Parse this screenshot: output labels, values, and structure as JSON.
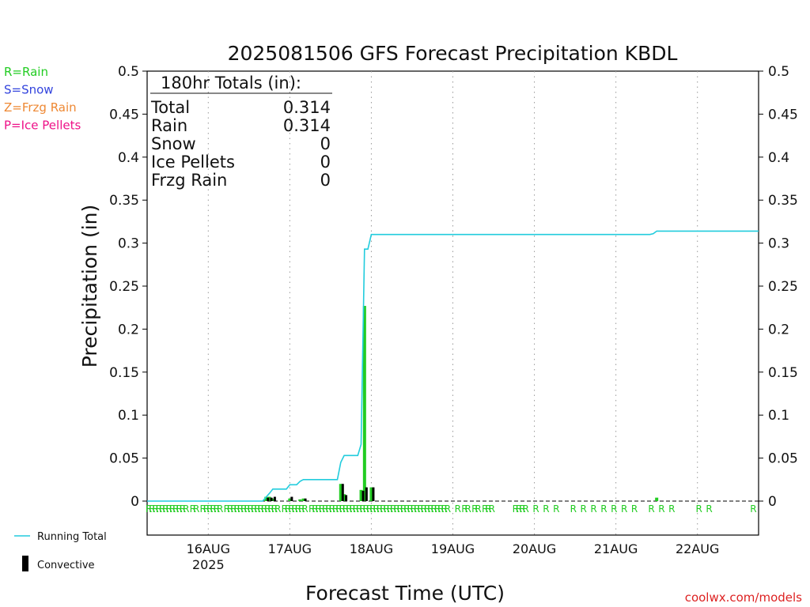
{
  "chart_data": {
    "type": "bar",
    "title": "2025081506 GFS Forecast Precipitation KBDL",
    "xlabel": "Forecast Time (UTC)",
    "ylabel": "Precipitation (in)",
    "ylim": [
      0,
      0.5
    ],
    "yticks": [
      "0",
      "0.05",
      "0.1",
      "0.15",
      "0.2",
      "0.25",
      "0.3",
      "0.35",
      "0.4",
      "0.45",
      "0.5"
    ],
    "xlim_hours_since_run": [
      0,
      180
    ],
    "xticks": [
      {
        "hour": 18,
        "label": "16AUG",
        "sublabel": "2025"
      },
      {
        "hour": 42,
        "label": "17AUG",
        "sublabel": ""
      },
      {
        "hour": 66,
        "label": "18AUG",
        "sublabel": ""
      },
      {
        "hour": 90,
        "label": "19AUG",
        "sublabel": ""
      },
      {
        "hour": 114,
        "label": "20AUG",
        "sublabel": ""
      },
      {
        "hour": 138,
        "label": "21AUG",
        "sublabel": ""
      },
      {
        "hour": 162,
        "label": "22AUG",
        "sublabel": ""
      }
    ],
    "type_legend": [
      {
        "text": "R=Rain",
        "color": "#22cc22"
      },
      {
        "text": "S=Snow",
        "color": "#3344dd"
      },
      {
        "text": "Z=Frzg Rain",
        "color": "#ee8833"
      },
      {
        "text": "P=Ice Pellets",
        "color": "#ee1188"
      }
    ],
    "series_legend": [
      {
        "name": "Running Total",
        "color": "#22ccdd",
        "kind": "line"
      },
      {
        "name": "Convective",
        "color": "#000000",
        "kind": "bar"
      }
    ],
    "totals_box": {
      "heading": "180hr Totals (in):",
      "rows": [
        {
          "label": "Total",
          "value": "0.314"
        },
        {
          "label": "Rain",
          "value": "0.314"
        },
        {
          "label": "Snow",
          "value": "0"
        },
        {
          "label": "Ice Pellets",
          "value": "0"
        },
        {
          "label": "Frzg Rain",
          "value": "0"
        }
      ]
    },
    "rain_bars": [
      {
        "hour": 35,
        "value": 0.005
      },
      {
        "hour": 36,
        "value": 0.005
      },
      {
        "hour": 37,
        "value": 0.003
      },
      {
        "hour": 42,
        "value": 0.003
      },
      {
        "hour": 45,
        "value": 0.002
      },
      {
        "hour": 46,
        "value": 0.003
      },
      {
        "hour": 57,
        "value": 0.02
      },
      {
        "hour": 58,
        "value": 0.008
      },
      {
        "hour": 63,
        "value": 0.013
      },
      {
        "hour": 64,
        "value": 0.227
      },
      {
        "hour": 66,
        "value": 0.016
      },
      {
        "hour": 150,
        "value": 0.004
      }
    ],
    "convective_bars": [
      {
        "hour": 35,
        "value": 0.004
      },
      {
        "hour": 36,
        "value": 0.004
      },
      {
        "hour": 37,
        "value": 0.005
      },
      {
        "hour": 42,
        "value": 0.005
      },
      {
        "hour": 46,
        "value": 0.003
      },
      {
        "hour": 57,
        "value": 0.02
      },
      {
        "hour": 58,
        "value": 0.007
      },
      {
        "hour": 63,
        "value": 0.012
      },
      {
        "hour": 64,
        "value": 0.016
      },
      {
        "hour": 66,
        "value": 0.016
      }
    ],
    "running_total": [
      {
        "hour": 0,
        "value": 0
      },
      {
        "hour": 34,
        "value": 0
      },
      {
        "hour": 36,
        "value": 0.009
      },
      {
        "hour": 37,
        "value": 0.014
      },
      {
        "hour": 41,
        "value": 0.014
      },
      {
        "hour": 42,
        "value": 0.019
      },
      {
        "hour": 44,
        "value": 0.019
      },
      {
        "hour": 45,
        "value": 0.023
      },
      {
        "hour": 46,
        "value": 0.025
      },
      {
        "hour": 56,
        "value": 0.025
      },
      {
        "hour": 57,
        "value": 0.045
      },
      {
        "hour": 58,
        "value": 0.053
      },
      {
        "hour": 62,
        "value": 0.053
      },
      {
        "hour": 63,
        "value": 0.066
      },
      {
        "hour": 64,
        "value": 0.293
      },
      {
        "hour": 65,
        "value": 0.293
      },
      {
        "hour": 66,
        "value": 0.31
      },
      {
        "hour": 148,
        "value": 0.31
      },
      {
        "hour": 149,
        "value": 0.311
      },
      {
        "hour": 150,
        "value": 0.314
      },
      {
        "hour": 180,
        "value": 0.314
      }
    ],
    "precip_type_marks": {
      "symbol": "R",
      "hours": [
        0,
        1,
        2,
        3,
        4,
        5,
        6,
        7,
        8,
        9,
        10,
        11,
        13,
        14,
        16,
        17,
        18,
        19,
        20,
        21,
        23,
        24,
        25,
        26,
        27,
        28,
        29,
        30,
        31,
        32,
        33,
        34,
        35,
        36,
        37,
        38,
        40,
        41,
        42,
        43,
        44,
        45,
        46,
        48,
        49,
        50,
        51,
        52,
        53,
        54,
        55,
        56,
        57,
        58,
        59,
        60,
        61,
        62,
        63,
        64,
        65,
        66,
        67,
        68,
        69,
        70,
        71,
        72,
        73,
        74,
        75,
        76,
        77,
        78,
        79,
        80,
        81,
        82,
        83,
        84,
        85,
        86,
        87,
        88,
        91,
        93,
        94,
        96,
        97,
        99,
        100,
        101,
        108,
        109,
        110,
        111,
        114,
        117,
        120,
        125,
        128,
        131,
        134,
        137,
        140,
        143,
        148,
        151,
        154,
        162,
        165,
        178
      ]
    },
    "credit": "coolwx.com/models"
  }
}
